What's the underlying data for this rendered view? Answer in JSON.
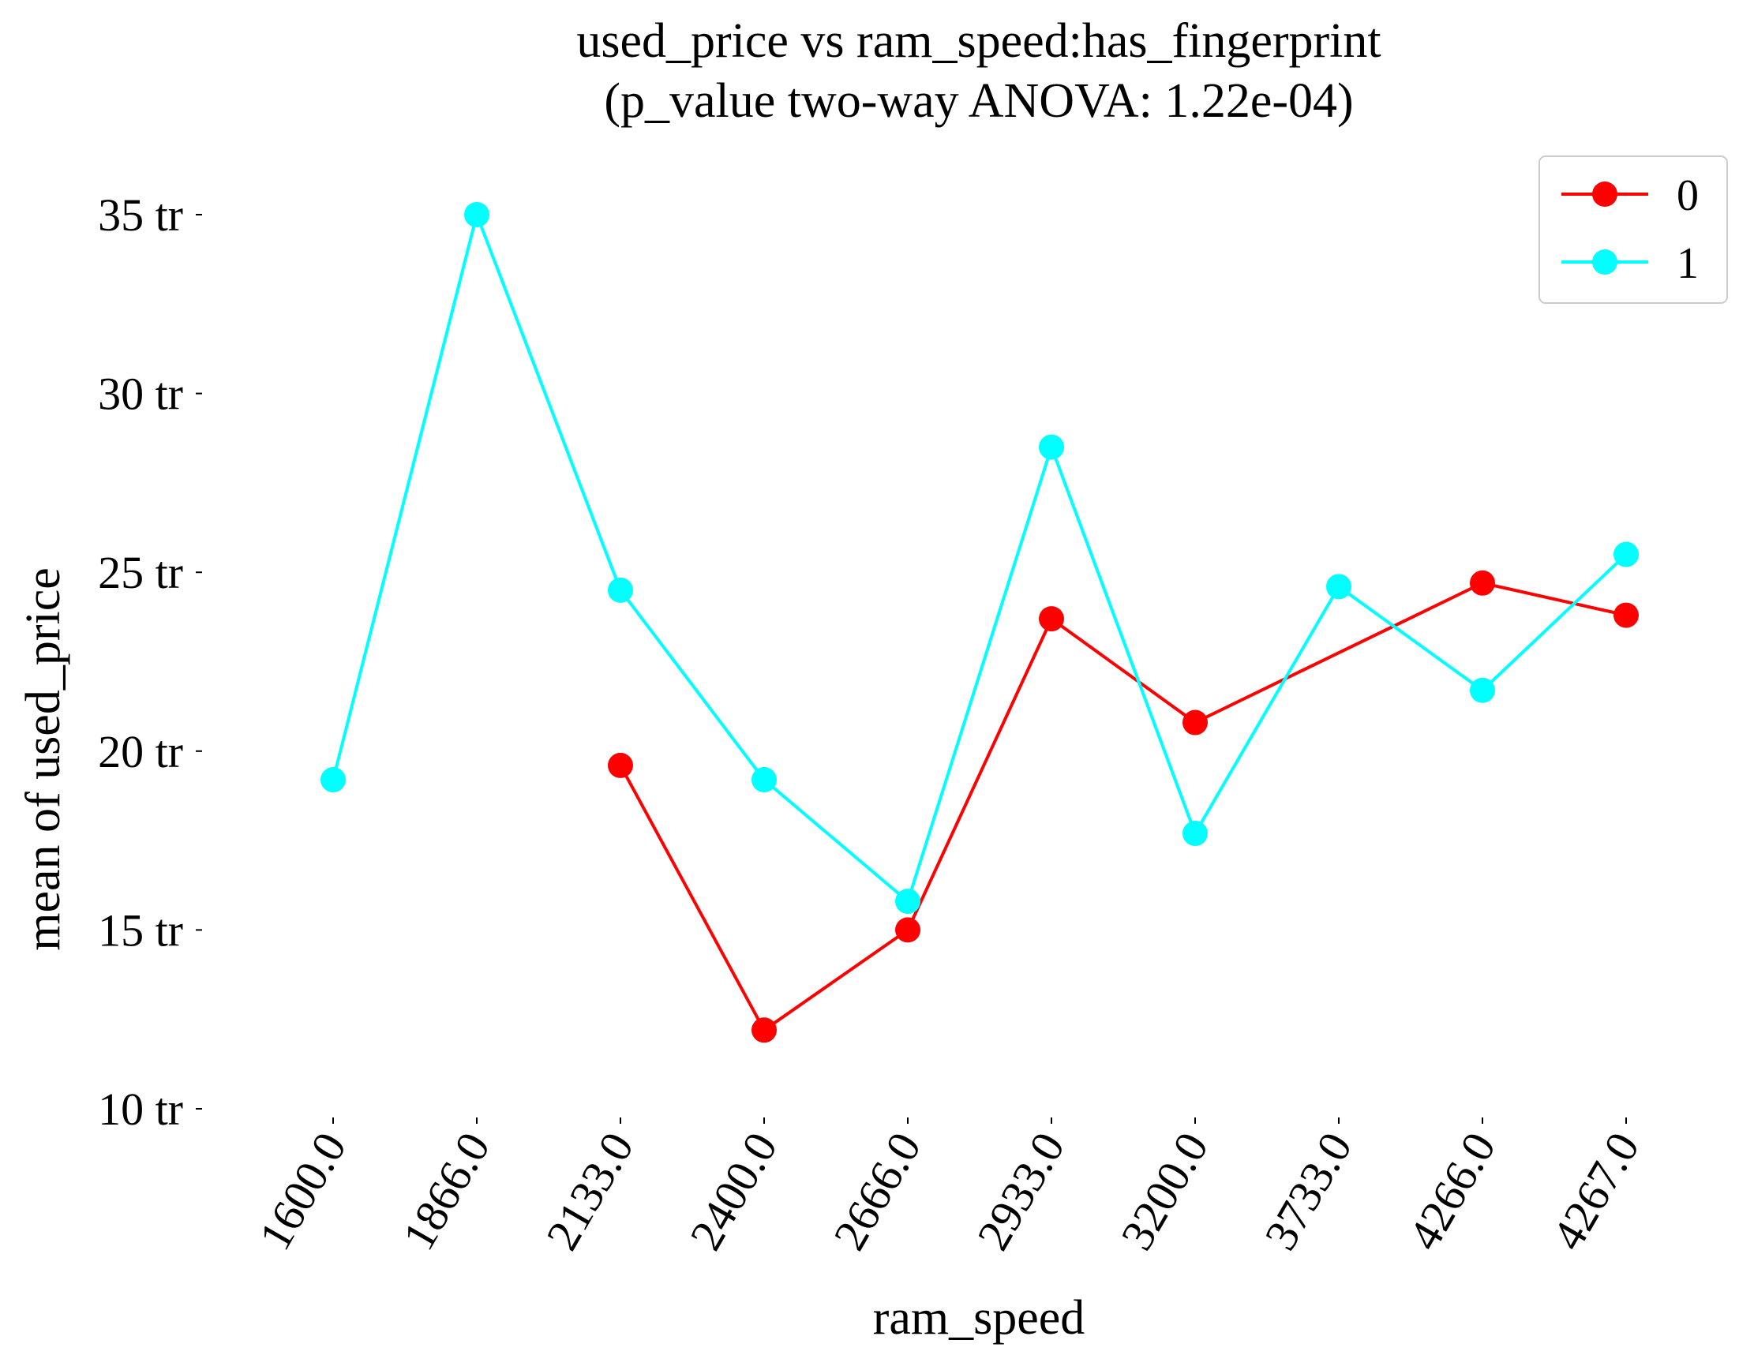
{
  "chart_data": {
    "type": "line",
    "title": "used_price vs ram_speed:has_fingerprint",
    "subtitle": "(p_value two-way ANOVA: 1.22e-04)",
    "xlabel": "ram_speed",
    "ylabel": "mean of used_price",
    "categories": [
      "1600.0",
      "1866.0",
      "2133.0",
      "2400.0",
      "2666.0",
      "2933.0",
      "3200.0",
      "3733.0",
      "4266.0",
      "4267.0"
    ],
    "y_ticks": [
      {
        "value": 10,
        "label": "10 tr"
      },
      {
        "value": 15,
        "label": "15 tr"
      },
      {
        "value": 20,
        "label": "20 tr"
      },
      {
        "value": 25,
        "label": "25 tr"
      },
      {
        "value": 30,
        "label": "30 tr"
      },
      {
        "value": 35,
        "label": "35 tr"
      }
    ],
    "ylim": [
      10,
      35
    ],
    "grid": false,
    "legend_position": "top-right",
    "series": [
      {
        "name": "0",
        "color": "#ff0000",
        "values": [
          null,
          null,
          19.6,
          12.2,
          15.0,
          23.7,
          20.8,
          null,
          24.7,
          23.8
        ]
      },
      {
        "name": "1",
        "color": "#00ffff",
        "values": [
          19.2,
          35.0,
          24.5,
          19.2,
          15.8,
          28.5,
          17.7,
          24.6,
          21.7,
          25.5
        ]
      }
    ]
  }
}
